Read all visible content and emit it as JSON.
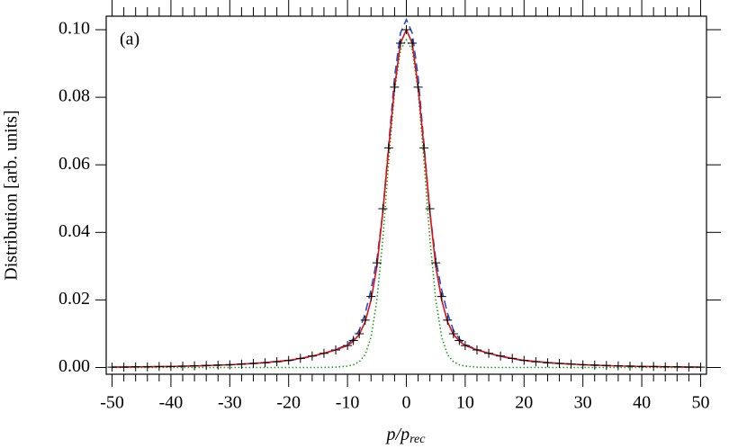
{
  "chart_data": {
    "type": "line",
    "annotation": "(a)",
    "xlabel": "p/p",
    "xlabel_sub": "rec",
    "ylabel": "Distribution [arb. units]",
    "xlim": [
      -51,
      51
    ],
    "ylim": [
      -0.002,
      0.104
    ],
    "xticks": [
      -50,
      -40,
      -30,
      -20,
      -10,
      0,
      10,
      20,
      30,
      40,
      50
    ],
    "yticks": [
      {
        "value": 0,
        "label": "0.00"
      },
      {
        "value": 0.02,
        "label": "0.02"
      },
      {
        "value": 0.04,
        "label": "0.04"
      },
      {
        "value": 0.06,
        "label": "0.06"
      },
      {
        "value": 0.08,
        "label": "0.08"
      },
      {
        "value": 0.1,
        "label": "0.10"
      }
    ],
    "minor_ticks_per_major": 5,
    "mirror_axes": true,
    "points": {
      "color": "#000000",
      "marker": "+",
      "x": [
        -50,
        -48,
        -46,
        -44,
        -42,
        -40,
        -38,
        -36,
        -34,
        -32,
        -30,
        -28,
        -26,
        -24,
        -22,
        -20,
        -18,
        -16,
        -14,
        -12,
        -10,
        -9,
        -8,
        -7,
        -6,
        -5,
        -4,
        -3,
        -2,
        -1,
        0,
        1,
        2,
        3,
        4,
        5,
        6,
        7,
        8,
        9,
        10,
        12,
        14,
        16,
        18,
        20,
        22,
        24,
        26,
        28,
        30,
        32,
        34,
        36,
        38,
        40,
        42,
        44,
        46,
        48,
        50
      ],
      "values": [
        0.0001,
        0.0001,
        0.0002,
        0.0002,
        0.0003,
        0.0003,
        0.0004,
        0.0005,
        0.0006,
        0.0007,
        0.0008,
        0.001,
        0.0012,
        0.0014,
        0.0017,
        0.0021,
        0.0027,
        0.0034,
        0.0042,
        0.0052,
        0.0065,
        0.008,
        0.01,
        0.014,
        0.021,
        0.031,
        0.047,
        0.065,
        0.083,
        0.096,
        0.1,
        0.096,
        0.083,
        0.065,
        0.047,
        0.031,
        0.021,
        0.014,
        0.01,
        0.008,
        0.0065,
        0.0052,
        0.0042,
        0.0034,
        0.0027,
        0.0021,
        0.0017,
        0.0014,
        0.0012,
        0.001,
        0.0008,
        0.0007,
        0.0006,
        0.0005,
        0.0004,
        0.0003,
        0.0003,
        0.0002,
        0.0002,
        0.0001,
        0.0001
      ]
    },
    "curve_x": [
      -50,
      -45,
      -40,
      -35,
      -30,
      -25,
      -20,
      -18,
      -16,
      -14,
      -12,
      -10,
      -9,
      -8,
      -7,
      -6,
      -5,
      -4,
      -3,
      -2,
      -1,
      0,
      1,
      2,
      3,
      4,
      5,
      6,
      7,
      8,
      9,
      10,
      12,
      14,
      16,
      18,
      20,
      25,
      30,
      35,
      40,
      45,
      50
    ],
    "series": [
      {
        "color": "#2050d8",
        "style": "dashed",
        "values": [
          0.0001,
          0.0002,
          0.0003,
          0.0005,
          0.0008,
          0.0013,
          0.002,
          0.0026,
          0.0033,
          0.0042,
          0.0053,
          0.0068,
          0.0085,
          0.011,
          0.016,
          0.023,
          0.032,
          0.046,
          0.066,
          0.086,
          0.099,
          0.103,
          0.099,
          0.086,
          0.066,
          0.046,
          0.032,
          0.023,
          0.016,
          0.011,
          0.0085,
          0.0068,
          0.0053,
          0.0042,
          0.0033,
          0.0026,
          0.002,
          0.0013,
          0.0008,
          0.0005,
          0.0003,
          0.0002,
          0.0001
        ]
      },
      {
        "color": "#1a9e1a",
        "style": "dotted",
        "values": [
          0,
          0,
          0,
          0,
          0,
          0,
          0,
          0,
          0,
          0,
          0.0001,
          0.0004,
          0.0008,
          0.0017,
          0.0038,
          0.009,
          0.02,
          0.038,
          0.061,
          0.082,
          0.094,
          0.097,
          0.094,
          0.082,
          0.061,
          0.038,
          0.02,
          0.009,
          0.0038,
          0.0017,
          0.0008,
          0.0004,
          0.0001,
          0,
          0,
          0,
          0,
          0,
          0,
          0,
          0,
          0,
          0
        ]
      },
      {
        "color": "#e01010",
        "style": "solid",
        "values": [
          0.0001,
          0.0002,
          0.0003,
          0.0005,
          0.0008,
          0.0013,
          0.0021,
          0.0027,
          0.0034,
          0.0042,
          0.0052,
          0.0065,
          0.0078,
          0.0098,
          0.0135,
          0.02,
          0.03,
          0.046,
          0.065,
          0.083,
          0.096,
          0.1,
          0.096,
          0.083,
          0.065,
          0.046,
          0.03,
          0.02,
          0.0135,
          0.0098,
          0.0078,
          0.0065,
          0.0052,
          0.0042,
          0.0034,
          0.0027,
          0.0021,
          0.0013,
          0.0008,
          0.0005,
          0.0003,
          0.0002,
          0.0001
        ]
      }
    ]
  }
}
